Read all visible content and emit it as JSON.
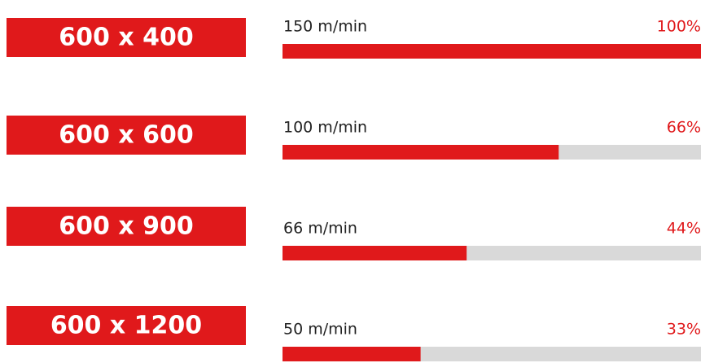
{
  "chart_data": {
    "type": "bar",
    "categories": [
      "600 x 400",
      "600 x 600",
      "600 x 900",
      "600 x 1200"
    ],
    "speed_labels": [
      "150 m/min",
      "100 m/min",
      "66 m/min",
      "50 m/min"
    ],
    "values": [
      100,
      66,
      44,
      33
    ],
    "value_labels": [
      "100%",
      "66%",
      "44%",
      "33%"
    ],
    "xlim": [
      0,
      100
    ],
    "color": "#e0191b",
    "track_color": "#d9d9d9"
  }
}
